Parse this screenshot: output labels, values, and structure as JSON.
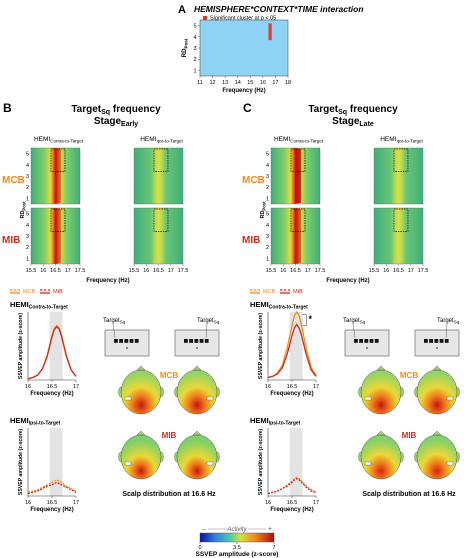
{
  "figure": {
    "panel_letters": [
      "A",
      "B",
      "C"
    ],
    "panel_a": {
      "title": "HEMISPHERE*CONTEXT*TIME interaction",
      "legend": "Significant cluster at p <.05",
      "xlabel": "Frequency (Hz)",
      "ylabel_main": "RD",
      "ylabel_sub": "Post",
      "x_ticks": [
        "11",
        "12",
        "13",
        "14",
        "15",
        "16",
        "17",
        "18"
      ],
      "y_ticks": [
        "1",
        "2",
        "3",
        "4",
        "5"
      ]
    },
    "panel_b": {
      "title_main": "Target",
      "title_sub": "Sq",
      "title_rest": " frequency",
      "stage_main": "Stage",
      "stage_sub": "Early"
    },
    "panel_c": {
      "title_main": "Target",
      "title_sub": "Sq",
      "title_rest": " frequency",
      "stage_main": "Stage",
      "stage_sub": "Late"
    },
    "hemi_contra_main": "HEMI",
    "hemi_contra_sub": "Contra-to-Target",
    "hemi_ipsi_main": "HEMI",
    "hemi_ipsi_sub": "Ipsi-to-Target",
    "row_mcb": "MCB",
    "row_mib": "MIB",
    "tf_ylabel_main": "RD",
    "tf_ylabel_sub": "Post",
    "tf_xlabel": "Frequency (Hz)",
    "tf_x_ticks": [
      "15.5",
      "16",
      "16.5",
      "17",
      "17.5"
    ],
    "tf_y_ticks": [
      "1",
      "2",
      "3",
      "4",
      "5"
    ],
    "legend_mcb": "MCB",
    "legend_mib": "MIB",
    "ssvep_ylabel": "SSVEP amplitude (z-score)",
    "line_x_ticks": [
      "16",
      "16.5",
      "17"
    ],
    "line_xlabel": "Frequency (Hz)",
    "target_main": "Target",
    "target_sub": "Sq",
    "scalp_mcb": "MCB",
    "scalp_mib": "MIB",
    "scalp_caption": "Scalp distribution at 16.6 Hz",
    "significance_mark": "*",
    "colorbar": {
      "minus": "–",
      "plus": "+",
      "activity": "Activity",
      "ticks": [
        "0",
        "3.5",
        "7"
      ],
      "label": "SSVEP amplitude (z-score)"
    }
  },
  "colors": {
    "mcb": "#f08a1e",
    "mib": "#cf2b1c",
    "significant": "#e8322a",
    "panel_a_bg": "#8fd3f4",
    "grey_band": "#e3e3e3"
  },
  "chart_data": [
    {
      "type": "heatmap",
      "panel": "A",
      "title": "HEMISPHERE*CONTEXT*TIME interaction",
      "xlabel": "Frequency (Hz)",
      "ylabel": "RDPost",
      "xlim": [
        11,
        18
      ],
      "ylim": [
        0.5,
        5.5
      ],
      "significant_cluster": {
        "x": [
          16.45,
          16.7
        ],
        "y": [
          3.7,
          5.2
        ]
      }
    },
    {
      "type": "heatmap",
      "panel": "B",
      "title": "TargetSq frequency StageEarly",
      "xlabel": "Frequency (Hz)",
      "ylabel": "RDPost",
      "xlim": [
        15.5,
        17.5
      ],
      "ylim": [
        0.5,
        5.5
      ],
      "maps": [
        {
          "condition": "MCB",
          "hemisphere": "Contra-to-Target",
          "peak_hz": 16.6,
          "peak_z": 5.2
        },
        {
          "condition": "MCB",
          "hemisphere": "Ipsi-to-Target",
          "peak_hz": 16.6,
          "peak_z": 1.6
        },
        {
          "condition": "MIB",
          "hemisphere": "Contra-to-Target",
          "peak_hz": 16.6,
          "peak_z": 5.2
        },
        {
          "condition": "MIB",
          "hemisphere": "Ipsi-to-Target",
          "peak_hz": 16.6,
          "peak_z": 1.6
        }
      ]
    },
    {
      "type": "heatmap",
      "panel": "C",
      "title": "TargetSq frequency StageLate",
      "xlabel": "Frequency (Hz)",
      "ylabel": "RDPost",
      "xlim": [
        15.5,
        17.5
      ],
      "ylim": [
        0.5,
        5.5
      ],
      "maps": [
        {
          "condition": "MCB",
          "hemisphere": "Contra-to-Target",
          "peak_hz": 16.6,
          "peak_z": 6.2
        },
        {
          "condition": "MCB",
          "hemisphere": "Ipsi-to-Target",
          "peak_hz": 16.6,
          "peak_z": 1.9
        },
        {
          "condition": "MIB",
          "hemisphere": "Contra-to-Target",
          "peak_hz": 16.6,
          "peak_z": 5.4
        },
        {
          "condition": "MIB",
          "hemisphere": "Ipsi-to-Target",
          "peak_hz": 16.6,
          "peak_z": 1.7
        }
      ]
    },
    {
      "type": "line",
      "panel": "B",
      "hemisphere": "Contra-to-Target",
      "xlabel": "Frequency (Hz)",
      "ylabel": "SSVEP amplitude (z-score)",
      "xlim": [
        16,
        17
      ],
      "ylim": [
        0,
        5.5
      ],
      "x": [
        16.0,
        16.1,
        16.2,
        16.3,
        16.4,
        16.5,
        16.55,
        16.6,
        16.65,
        16.7,
        16.8,
        16.9,
        17.0
      ],
      "series": [
        {
          "name": "MCB",
          "values": [
            0.1,
            0.2,
            0.4,
            0.9,
            2.0,
            3.6,
            4.2,
            4.4,
            4.2,
            3.6,
            2.0,
            0.8,
            0.3
          ]
        },
        {
          "name": "MIB",
          "values": [
            0.1,
            0.2,
            0.4,
            0.9,
            1.9,
            3.5,
            4.1,
            4.3,
            4.1,
            3.5,
            1.9,
            0.8,
            0.3
          ]
        }
      ]
    },
    {
      "type": "line",
      "panel": "B",
      "hemisphere": "Ipsi-to-Target",
      "xlabel": "Frequency (Hz)",
      "ylabel": "SSVEP amplitude (z-score)",
      "xlim": [
        16,
        17
      ],
      "ylim": [
        0,
        5.5
      ],
      "x": [
        16.0,
        16.1,
        16.2,
        16.3,
        16.4,
        16.5,
        16.55,
        16.6,
        16.65,
        16.7,
        16.8,
        16.9,
        17.0
      ],
      "series": [
        {
          "name": "MCB",
          "values": [
            0.3,
            0.4,
            0.5,
            0.7,
            0.9,
            1.1,
            1.2,
            1.3,
            1.2,
            1.1,
            0.8,
            0.6,
            0.4
          ]
        },
        {
          "name": "MIB",
          "values": [
            0.2,
            0.3,
            0.4,
            0.6,
            0.8,
            0.9,
            1.0,
            1.1,
            1.0,
            0.9,
            0.7,
            0.5,
            0.3
          ]
        }
      ]
    },
    {
      "type": "line",
      "panel": "C",
      "hemisphere": "Contra-to-Target",
      "xlabel": "Frequency (Hz)",
      "ylabel": "SSVEP amplitude (z-score)",
      "xlim": [
        16,
        17
      ],
      "ylim": [
        0,
        5.5
      ],
      "x": [
        16.0,
        16.1,
        16.2,
        16.3,
        16.4,
        16.5,
        16.55,
        16.6,
        16.65,
        16.7,
        16.8,
        16.9,
        17.0
      ],
      "series": [
        {
          "name": "MCB",
          "values": [
            0.2,
            0.3,
            0.6,
            1.2,
            2.6,
            4.4,
            5.2,
            5.5,
            5.2,
            4.4,
            2.5,
            1.0,
            0.4
          ]
        },
        {
          "name": "MIB",
          "values": [
            0.2,
            0.3,
            0.5,
            1.0,
            2.1,
            3.6,
            4.2,
            4.5,
            4.2,
            3.6,
            2.0,
            0.8,
            0.3
          ]
        }
      ]
    },
    {
      "type": "line",
      "panel": "C",
      "hemisphere": "Ipsi-to-Target",
      "xlabel": "Frequency (Hz)",
      "ylabel": "SSVEP amplitude (z-score)",
      "xlim": [
        16,
        17
      ],
      "ylim": [
        0,
        5.5
      ],
      "x": [
        16.0,
        16.1,
        16.2,
        16.3,
        16.4,
        16.5,
        16.55,
        16.6,
        16.65,
        16.7,
        16.8,
        16.9,
        17.0
      ],
      "series": [
        {
          "name": "MCB",
          "values": [
            0.2,
            0.3,
            0.4,
            0.6,
            0.9,
            1.2,
            1.4,
            1.5,
            1.4,
            1.2,
            0.8,
            0.5,
            0.3
          ]
        },
        {
          "name": "MIB",
          "values": [
            0.2,
            0.3,
            0.4,
            0.6,
            0.8,
            1.1,
            1.3,
            1.4,
            1.3,
            1.1,
            0.7,
            0.4,
            0.3
          ]
        }
      ]
    }
  ]
}
